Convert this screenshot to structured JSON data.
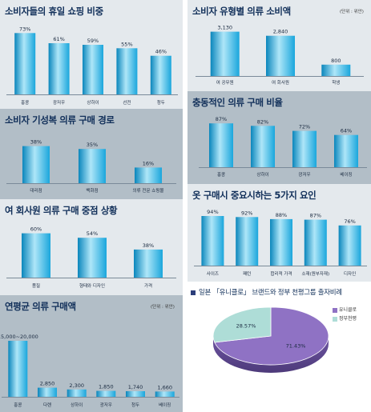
{
  "colors": {
    "bar_mid": "#1aa6dc",
    "bar_light": "#aee6f8",
    "bar_dark": "#0a86bc",
    "axis": "#7a8a99",
    "pie_purple": "#8f72c4",
    "pie_teal": "#aeddd7",
    "dot": "#2c3e7a"
  },
  "chart_data": [
    {
      "type": "bar",
      "title": "소비자들의 휴일 쇼핑 비중",
      "categories": [
        "홍콩",
        "광저우",
        "상하이",
        "선전",
        "청두"
      ],
      "value_labels": [
        "73%",
        "61%",
        "59%",
        "55%",
        "46%"
      ],
      "values": [
        73,
        61,
        59,
        55,
        46
      ],
      "ylim": [
        0,
        80
      ]
    },
    {
      "type": "bar",
      "title": "소비자 기성복 의류 구매 경로",
      "categories": [
        "대리점",
        "백화점",
        "의류 전문 쇼핑몰"
      ],
      "value_labels": [
        "38%",
        "35%",
        "16%"
      ],
      "values": [
        38,
        35,
        16
      ],
      "ylim": [
        0,
        45
      ]
    },
    {
      "type": "bar",
      "title": "여 회사원 의류 구매 중점 상황",
      "categories": [
        "품질",
        "형태와 디자인",
        "가격"
      ],
      "value_labels": [
        "60%",
        "54%",
        "38%"
      ],
      "values": [
        60,
        54,
        38
      ],
      "ylim": [
        0,
        65
      ]
    },
    {
      "type": "bar",
      "title": "연평균 의류 구매액",
      "unit": "(단위 : 위안)",
      "categories": [
        "홍콩",
        "다롄",
        "상하이",
        "광저우",
        "청두",
        "베이징"
      ],
      "value_labels": [
        "15,000~20,000",
        "2,850",
        "2,300",
        "1,850",
        "1,740",
        "1,660"
      ],
      "values": [
        17500,
        2850,
        2300,
        1850,
        1740,
        1660
      ],
      "ylim": [
        0,
        19000
      ]
    },
    {
      "type": "bar",
      "title": "소비자 유형별 의류 소비액",
      "unit": "(단위 : 위안)",
      "categories": [
        "여 공무원",
        "여 회사원",
        "학생"
      ],
      "value_labels": [
        "3,130",
        "2,840",
        "800"
      ],
      "values": [
        3130,
        2840,
        800
      ],
      "ylim": [
        0,
        3500
      ]
    },
    {
      "type": "bar",
      "title": "충동적인 의류 구매 비율",
      "categories": [
        "홍콩",
        "상하이",
        "광저우",
        "베이징"
      ],
      "value_labels": [
        "87%",
        "82%",
        "72%",
        "64%"
      ],
      "values": [
        87,
        82,
        72,
        64
      ],
      "ylim": [
        0,
        100
      ]
    },
    {
      "type": "bar",
      "title": "옷 구매시 중요시하는 5가지 요인",
      "categories": [
        "사이즈",
        "패턴",
        "합리적 가격",
        "소재(원부자재)",
        "디자인"
      ],
      "value_labels": [
        "94%",
        "92%",
        "88%",
        "87%",
        "76%"
      ],
      "values": [
        94,
        92,
        88,
        87,
        76
      ],
      "ylim": [
        0,
        100
      ]
    },
    {
      "type": "pie",
      "title": "일본 「유니클로」 브랜드와 정부 천평그룹 출자비례",
      "slices": [
        {
          "label": "유니클로",
          "value": 71.43,
          "value_label": "71.43%"
        },
        {
          "label": "정부천평",
          "value": 28.57,
          "value_label": "28.57%"
        }
      ]
    }
  ]
}
